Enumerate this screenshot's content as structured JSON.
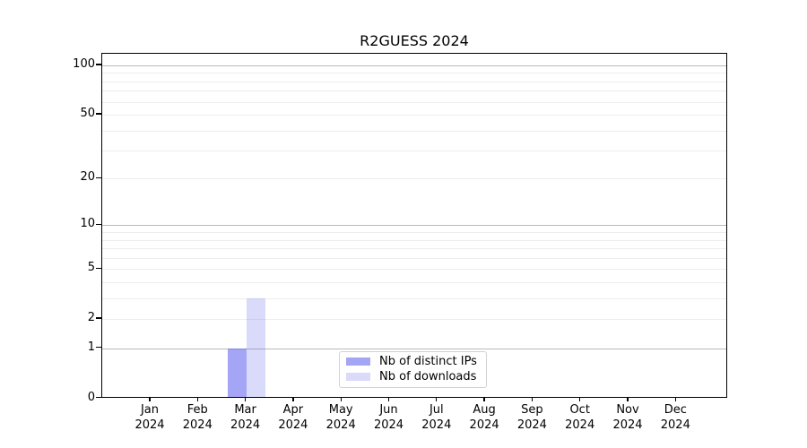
{
  "chart_data": {
    "type": "bar",
    "title": "R2GUESS 2024",
    "categories": [
      "Jan 2024",
      "Feb 2024",
      "Mar 2024",
      "Apr 2024",
      "May 2024",
      "Jun 2024",
      "Jul 2024",
      "Aug 2024",
      "Sep 2024",
      "Oct 2024",
      "Nov 2024",
      "Dec 2024"
    ],
    "series": [
      {
        "name": "Nb of distinct IPs",
        "color": "#6666ee",
        "alpha": 0.59,
        "values": [
          0,
          0,
          1,
          0,
          0,
          0,
          0,
          0,
          0,
          0,
          0,
          0
        ]
      },
      {
        "name": "Nb of downloads",
        "color": "#6666ee",
        "alpha": 0.24,
        "values": [
          0,
          0,
          3,
          0,
          0,
          0,
          0,
          0,
          0,
          0,
          0,
          0
        ]
      }
    ],
    "xlabel": "",
    "ylabel": "",
    "yscale": "log1p",
    "ylim": [
      0,
      117.6
    ],
    "yticks": [
      0,
      1,
      2,
      5,
      10,
      20,
      50,
      100
    ],
    "grid_major": [
      1,
      10,
      100
    ],
    "grid_minor": [
      2,
      3,
      4,
      5,
      6,
      7,
      8,
      9,
      20,
      30,
      40,
      50,
      60,
      70,
      80,
      90
    ],
    "grid": true,
    "legend_position": "lower center"
  },
  "colors": {
    "background": "#ffffff",
    "spine": "#000000",
    "text": "#000000",
    "grid_major": "#b9b9b9",
    "grid_minor": "#ededed",
    "legend_border": "#d2d2d2",
    "bar_distinct_ips_rendered": "#a5a5f0",
    "bar_downloads_rendered": "#dbdbf8"
  }
}
